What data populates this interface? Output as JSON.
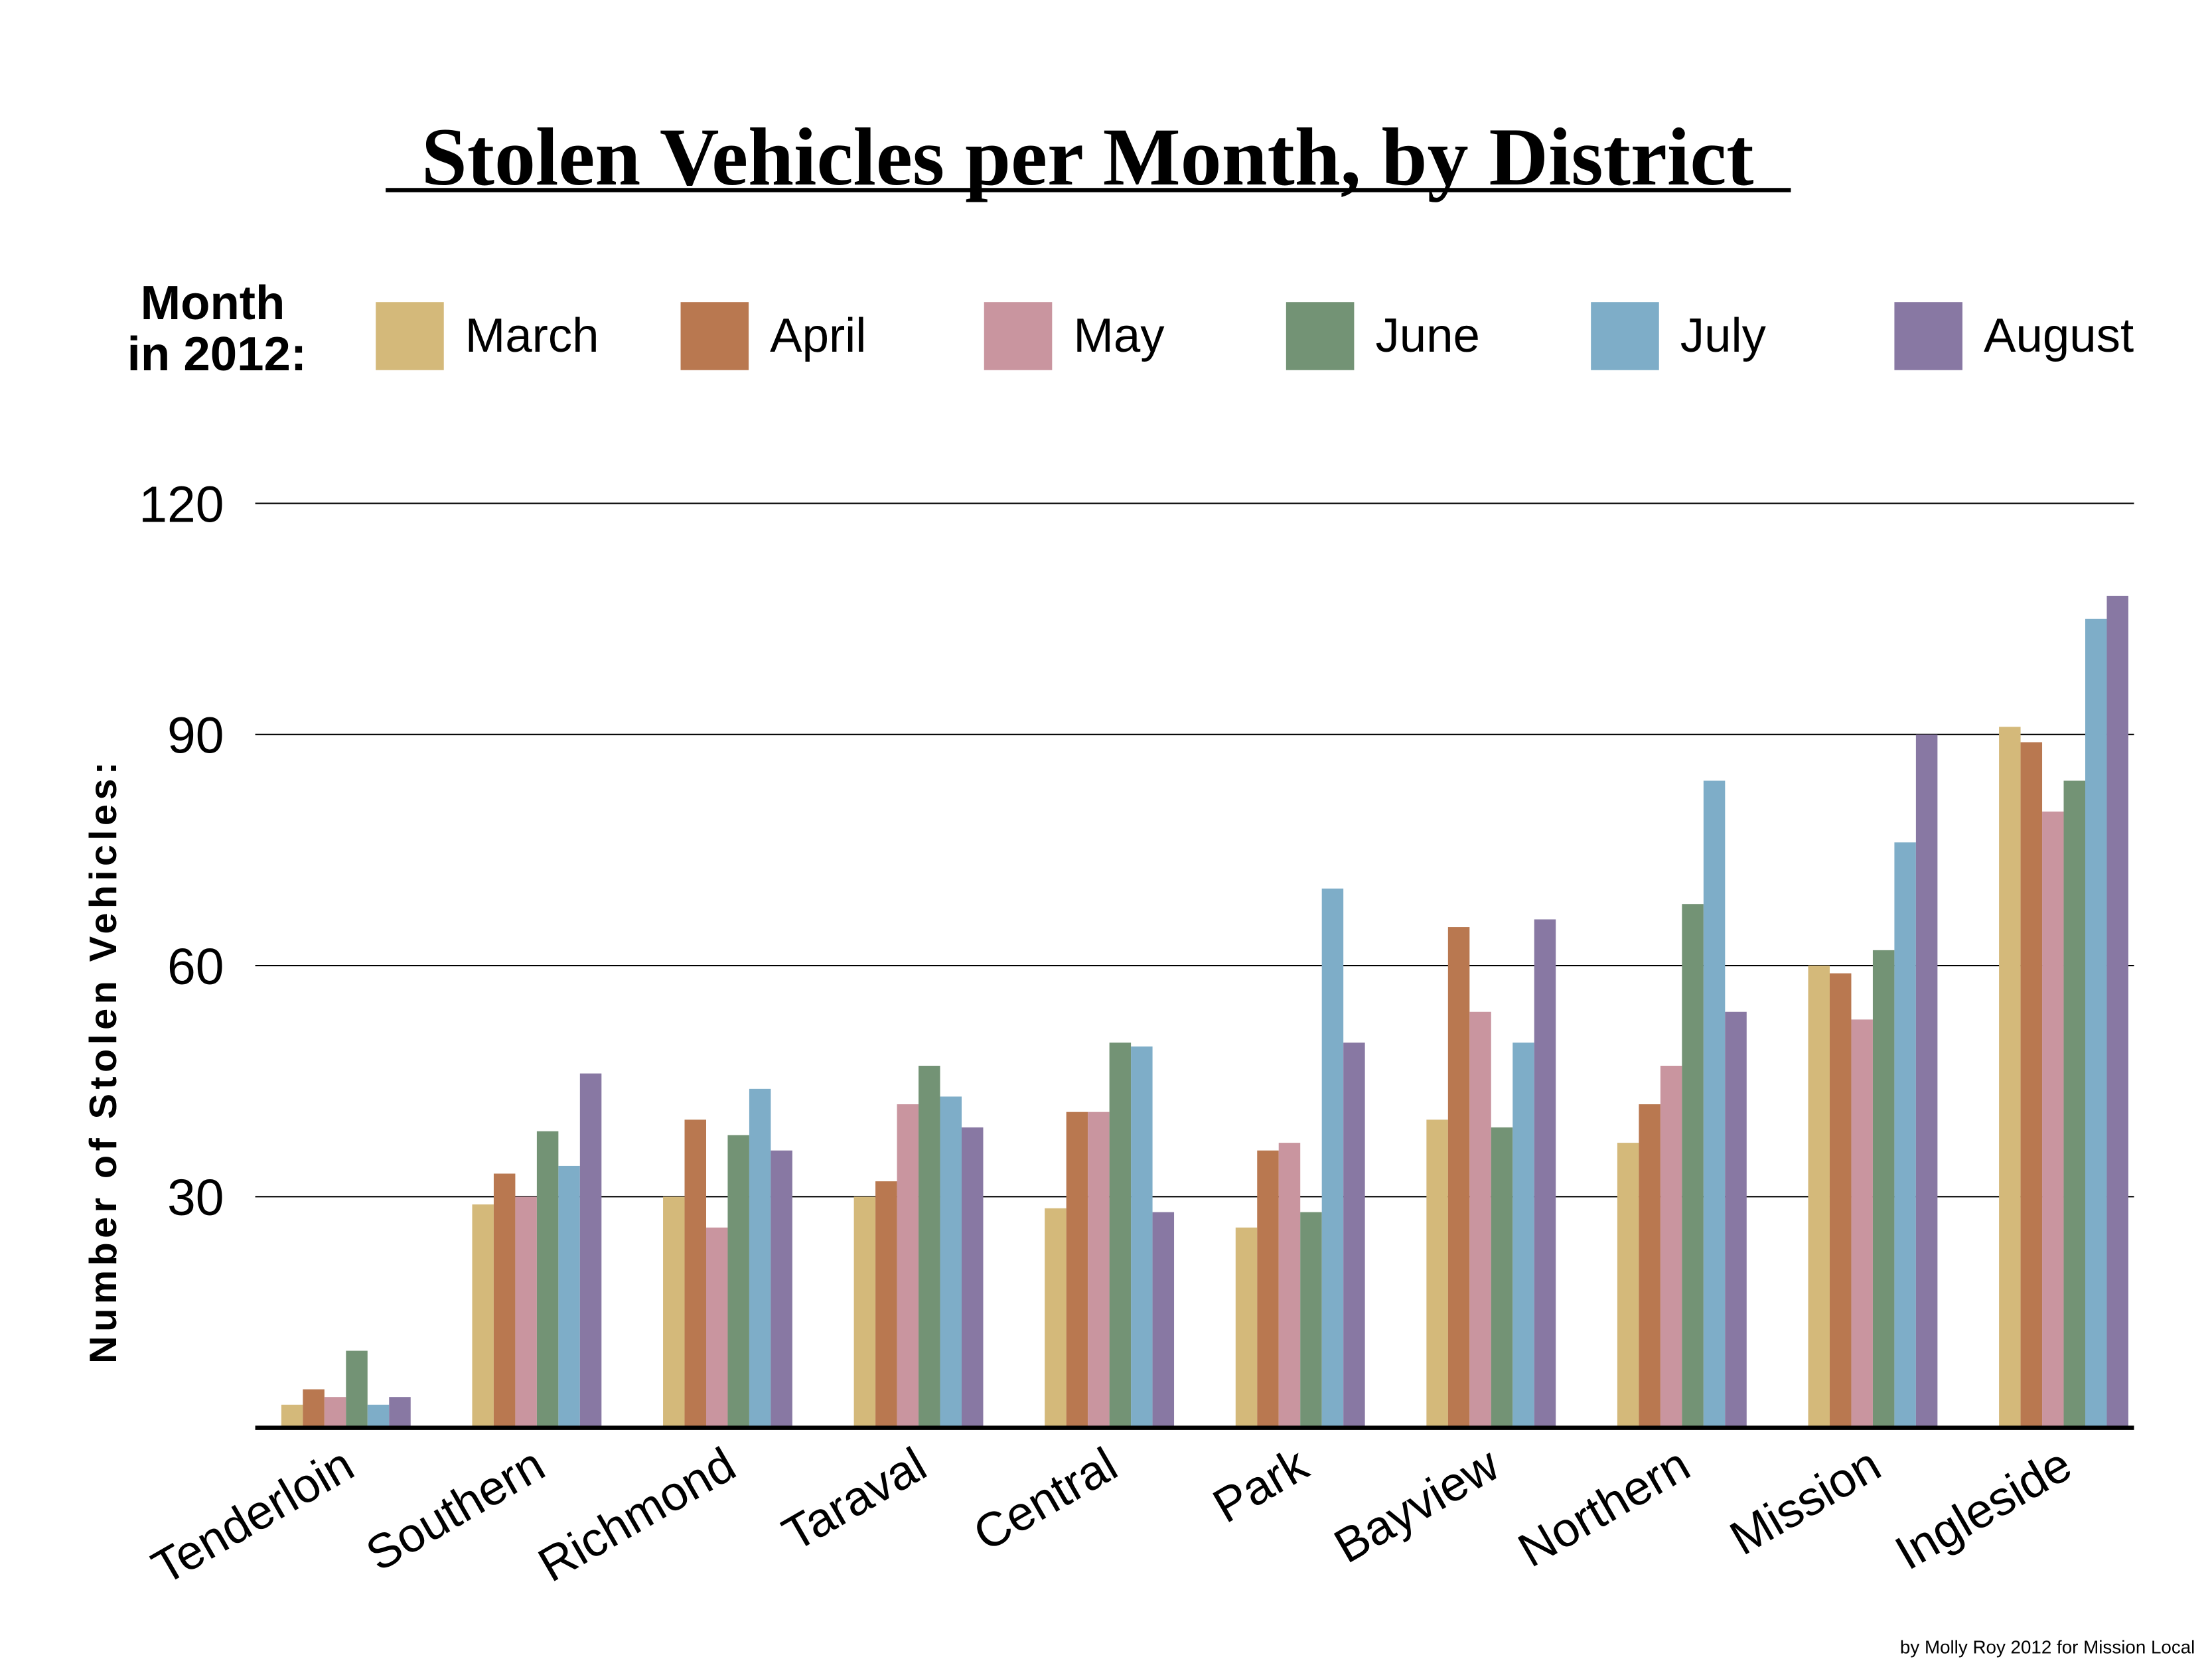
{
  "chart_data": {
    "type": "bar",
    "title": "Stolen Vehicles per Month, by District",
    "legend_title_line1": "Month",
    "legend_title_line2": "in 2012:",
    "legend_placement": "top",
    "ylabel": "Number of Stolen Vehicles:",
    "xlabel": "",
    "ylim": [
      0,
      120
    ],
    "yticks": [
      30,
      60,
      90,
      120
    ],
    "grid": true,
    "categories": [
      "Tenderloin",
      "Southern",
      "Richmond",
      "Taraval",
      "Central",
      "Park",
      "Bayview",
      "Northern",
      "Mission",
      "Ingleside"
    ],
    "series": [
      {
        "name": "March",
        "color": "#d4b97a",
        "values": [
          3,
          29,
          30,
          30,
          28.5,
          26,
          40,
          37,
          60,
          91
        ]
      },
      {
        "name": "April",
        "color": "#b97850",
        "values": [
          5,
          33,
          40,
          32,
          41,
          36,
          65,
          42,
          59,
          89
        ]
      },
      {
        "name": "May",
        "color": "#c9959f",
        "values": [
          4,
          30,
          26,
          42,
          41,
          37,
          54,
          47,
          53,
          80
        ]
      },
      {
        "name": "June",
        "color": "#739375",
        "values": [
          10,
          38.5,
          38,
          47,
          50,
          28,
          39,
          68,
          62,
          84
        ]
      },
      {
        "name": "July",
        "color": "#7eadc8",
        "values": [
          3,
          34,
          44,
          43,
          49.5,
          70,
          50,
          84,
          76,
          105
        ]
      },
      {
        "name": "August",
        "color": "#8878a3",
        "values": [
          4,
          46,
          36,
          39,
          28,
          50,
          66,
          54,
          90,
          108
        ]
      }
    ]
  },
  "credit": "by Molly Roy 2012 for Mission Local"
}
